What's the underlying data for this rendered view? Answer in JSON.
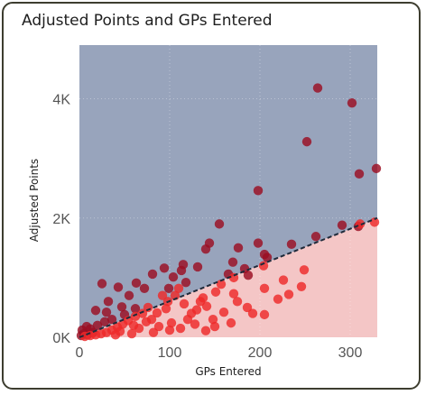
{
  "chart_data": {
    "type": "scatter",
    "title": "Adjusted Points and GPs Entered",
    "xlabel": "GPs Entered",
    "ylabel": "Adjusted Points",
    "xlim": [
      0,
      330
    ],
    "ylim": [
      0,
      4900
    ],
    "x_ticks": [
      {
        "value": 0,
        "label": "0"
      },
      {
        "value": 100,
        "label": "100"
      },
      {
        "value": 200,
        "label": "200"
      },
      {
        "value": 300,
        "label": "300"
      }
    ],
    "y_ticks": [
      {
        "value": 0,
        "label": "0K"
      },
      {
        "value": 2000,
        "label": "2K"
      },
      {
        "value": 4000,
        "label": "4K"
      }
    ],
    "grid": true,
    "reference_line": {
      "from": [
        0,
        0
      ],
      "to": [
        330,
        2000
      ],
      "style": "dashed"
    },
    "colors": {
      "above_region": "#98a4bc",
      "below_region": "#f4c6c6",
      "above_points": "#9b0e22",
      "below_points": "#ee2a2a",
      "reference_line": "#1f2a3a"
    },
    "series": [
      {
        "group": "above",
        "points": [
          [
            264,
            4180
          ],
          [
            302,
            3930
          ],
          [
            252,
            3280
          ],
          [
            329,
            2830
          ],
          [
            310,
            2740
          ],
          [
            198,
            2460
          ],
          [
            155,
            1900
          ],
          [
            291,
            1880
          ],
          [
            309,
            1860
          ],
          [
            262,
            1690
          ],
          [
            198,
            1580
          ],
          [
            205,
            1390
          ],
          [
            144,
            1580
          ],
          [
            208,
            1340
          ],
          [
            140,
            1480
          ],
          [
            176,
            1500
          ],
          [
            235,
            1560
          ],
          [
            170,
            1260
          ],
          [
            183,
            1150
          ],
          [
            115,
            1220
          ],
          [
            187,
            1040
          ],
          [
            131,
            1180
          ],
          [
            165,
            1060
          ],
          [
            94,
            1160
          ],
          [
            113,
            1120
          ],
          [
            81,
            1060
          ],
          [
            104,
            1010
          ],
          [
            63,
            910
          ],
          [
            43,
            840
          ],
          [
            25,
            900
          ],
          [
            118,
            920
          ],
          [
            72,
            820
          ],
          [
            99,
            820
          ],
          [
            55,
            700
          ],
          [
            32,
            600
          ],
          [
            18,
            450
          ],
          [
            30,
            420
          ],
          [
            47,
            510
          ],
          [
            8,
            180
          ],
          [
            3,
            120
          ],
          [
            5,
            60
          ],
          [
            12,
            140
          ],
          [
            20,
            200
          ],
          [
            28,
            260
          ],
          [
            36,
            300
          ],
          [
            50,
            380
          ],
          [
            62,
            480
          ],
          [
            15,
            80
          ],
          [
            2,
            30
          ],
          [
            9,
            40
          ]
        ]
      },
      {
        "group": "below",
        "points": [
          [
            311,
            1900
          ],
          [
            327,
            1930
          ],
          [
            249,
            1130
          ],
          [
            246,
            850
          ],
          [
            204,
            1200
          ],
          [
            226,
            960
          ],
          [
            205,
            820
          ],
          [
            171,
            1000
          ],
          [
            171,
            730
          ],
          [
            175,
            600
          ],
          [
            205,
            380
          ],
          [
            157,
            890
          ],
          [
            151,
            760
          ],
          [
            137,
            660
          ],
          [
            141,
            520
          ],
          [
            130,
            460
          ],
          [
            116,
            560
          ],
          [
            110,
            820
          ],
          [
            106,
            700
          ],
          [
            124,
            400
          ],
          [
            120,
            300
          ],
          [
            98,
            600
          ],
          [
            92,
            700
          ],
          [
            96,
            480
          ],
          [
            86,
            410
          ],
          [
            80,
            300
          ],
          [
            74,
            260
          ],
          [
            70,
            400
          ],
          [
            62,
            350
          ],
          [
            54,
            280
          ],
          [
            48,
            220
          ],
          [
            42,
            170
          ],
          [
            36,
            120
          ],
          [
            30,
            80
          ],
          [
            24,
            60
          ],
          [
            18,
            40
          ],
          [
            12,
            30
          ],
          [
            6,
            15
          ],
          [
            66,
            150
          ],
          [
            88,
            180
          ],
          [
            102,
            240
          ],
          [
            112,
            150
          ],
          [
            128,
            220
          ],
          [
            140,
            110
          ],
          [
            82,
            80
          ],
          [
            58,
            60
          ],
          [
            40,
            40
          ],
          [
            148,
            300
          ],
          [
            160,
            420
          ],
          [
            186,
            500
          ],
          [
            220,
            640
          ],
          [
            232,
            720
          ],
          [
            168,
            240
          ],
          [
            192,
            400
          ],
          [
            100,
            120
          ],
          [
            76,
            500
          ],
          [
            60,
            200
          ],
          [
            45,
            100
          ],
          [
            150,
            180
          ],
          [
            134,
            600
          ]
        ]
      }
    ]
  }
}
